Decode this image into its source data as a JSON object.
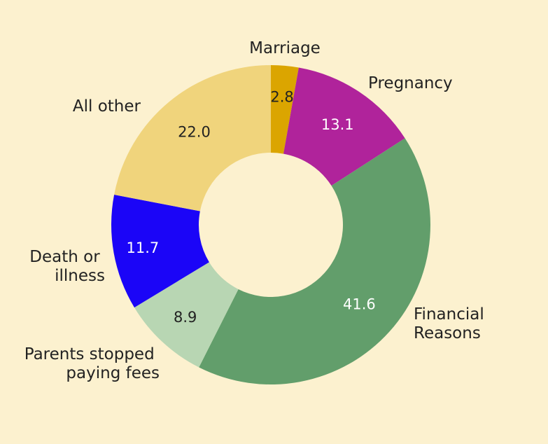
{
  "chart_data": {
    "type": "pie",
    "variant": "donut",
    "title": "",
    "start_angle_deg": 0,
    "direction": "clockwise",
    "categories": [
      "Marriage",
      "Pregnancy",
      "Financial Reasons",
      "Parents stopped paying fees",
      "Death or illness",
      "All other"
    ],
    "values": [
      2.8,
      13.1,
      41.6,
      8.9,
      11.7,
      22.0
    ],
    "value_labels": [
      "2.8",
      "13.1",
      "41.6",
      "8.9",
      "11.7",
      "22.0"
    ],
    "colors": [
      "#dba500",
      "#b0239b",
      "#629e6b",
      "#b8d6b3",
      "#1b05f7",
      "#f0d47c"
    ],
    "value_label_colors": [
      "#222222",
      "#ffffff",
      "#ffffff",
      "#222222",
      "#ffffff",
      "#222222"
    ],
    "legend": "none",
    "background": "#fcf1cf"
  }
}
